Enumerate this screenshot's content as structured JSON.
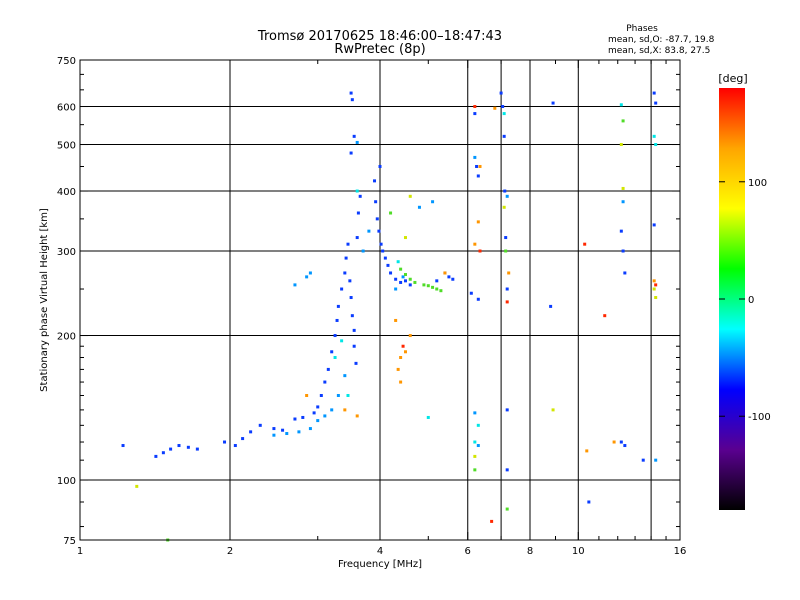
{
  "chart_data": {
    "type": "scatter",
    "title": "Tromsø 20170625 18:46:00–18:47:43",
    "subtitle": "RwPretec (8p)",
    "xlabel": "Frequency [MHz]",
    "ylabel": "Stationary phase Virtual Height [km]",
    "xscale": "log",
    "yscale": "log",
    "xlim": [
      1,
      16
    ],
    "ylim": [
      75,
      750
    ],
    "xticks": [
      1,
      2,
      4,
      6,
      8,
      10,
      16
    ],
    "xtick_labels": [
      "1",
      "2",
      "4",
      "6",
      "8",
      "10",
      "16"
    ],
    "xgrid": [
      2,
      4,
      6,
      7,
      8,
      10,
      14
    ],
    "yticks": [
      75,
      100,
      200,
      300,
      400,
      500,
      600,
      750
    ],
    "ytick_labels": [
      "75",
      "100",
      "200",
      "300",
      "400",
      "500",
      "600",
      "750"
    ],
    "ygrid": [
      100,
      200,
      300,
      400,
      500,
      600
    ],
    "grid": true,
    "phase_stats": {
      "header": "Phases",
      "line_o": "mean, sd,O: -87.7, 19.8",
      "line_x": "mean, sd,X: 83.8, 27.5"
    },
    "colorbar": {
      "label": "[deg]",
      "range": [
        -180,
        180
      ],
      "ticks": [
        100,
        0,
        -100
      ],
      "tick_labels": [
        "100",
        "0",
        "-100"
      ],
      "colors": [
        "#ff0000",
        "#ffa500",
        "#ffff00",
        "#00ff00",
        "#00ffff",
        "#0000ff",
        "#5a0090",
        "#000000"
      ]
    },
    "series": [
      {
        "phase": -100,
        "color": "#0a3cff",
        "points": [
          [
            1.22,
            118
          ],
          [
            1.42,
            112
          ],
          [
            1.47,
            114
          ],
          [
            1.52,
            116
          ],
          [
            1.58,
            118
          ],
          [
            1.65,
            117
          ],
          [
            1.72,
            116
          ],
          [
            1.95,
            120
          ],
          [
            2.05,
            118
          ],
          [
            2.12,
            122
          ],
          [
            2.2,
            126
          ],
          [
            2.3,
            130
          ],
          [
            2.45,
            128
          ],
          [
            2.55,
            127
          ],
          [
            2.7,
            134
          ],
          [
            2.8,
            135
          ],
          [
            2.95,
            138
          ],
          [
            3.0,
            142
          ],
          [
            3.05,
            150
          ],
          [
            3.1,
            160
          ],
          [
            3.15,
            170
          ],
          [
            3.2,
            185
          ],
          [
            3.25,
            200
          ],
          [
            3.28,
            215
          ],
          [
            3.3,
            230
          ],
          [
            3.35,
            250
          ],
          [
            3.4,
            270
          ],
          [
            3.42,
            290
          ],
          [
            3.45,
            310
          ],
          [
            3.48,
            260
          ],
          [
            3.5,
            240
          ],
          [
            3.52,
            220
          ],
          [
            3.55,
            205
          ],
          [
            3.55,
            190
          ],
          [
            3.58,
            175
          ],
          [
            3.6,
            320
          ],
          [
            3.62,
            360
          ],
          [
            3.65,
            390
          ],
          [
            3.5,
            640
          ],
          [
            3.52,
            620
          ],
          [
            3.55,
            520
          ],
          [
            3.5,
            480
          ],
          [
            3.9,
            420
          ],
          [
            3.92,
            380
          ],
          [
            3.95,
            350
          ],
          [
            3.98,
            330
          ],
          [
            4.0,
            450
          ],
          [
            4.02,
            310
          ],
          [
            4.05,
            300
          ],
          [
            4.1,
            290
          ],
          [
            4.15,
            280
          ],
          [
            4.2,
            270
          ],
          [
            4.3,
            262
          ],
          [
            4.4,
            258
          ],
          [
            4.5,
            260
          ],
          [
            4.6,
            255
          ],
          [
            5.2,
            260
          ],
          [
            5.4,
            270
          ],
          [
            5.5,
            265
          ],
          [
            5.6,
            262
          ],
          [
            6.1,
            245
          ],
          [
            6.3,
            238
          ],
          [
            6.2,
            580
          ],
          [
            6.25,
            450
          ],
          [
            6.3,
            430
          ],
          [
            7.0,
            640
          ],
          [
            7.05,
            600
          ],
          [
            7.1,
            520
          ],
          [
            7.12,
            400
          ],
          [
            7.15,
            320
          ],
          [
            7.2,
            250
          ],
          [
            7.2,
            140
          ],
          [
            7.2,
            105
          ],
          [
            8.9,
            610
          ],
          [
            8.8,
            230
          ],
          [
            10.5,
            90
          ],
          [
            12.2,
            330
          ],
          [
            12.3,
            300
          ],
          [
            12.4,
            270
          ],
          [
            12.2,
            120
          ],
          [
            12.4,
            118
          ],
          [
            14.2,
            640
          ],
          [
            14.3,
            610
          ],
          [
            14.2,
            340
          ],
          [
            13.5,
            110
          ]
        ]
      },
      {
        "phase": -60,
        "color": "#0096ff",
        "points": [
          [
            2.45,
            124
          ],
          [
            2.6,
            125
          ],
          [
            2.75,
            126
          ],
          [
            2.9,
            128
          ],
          [
            3.0,
            133
          ],
          [
            3.1,
            136
          ],
          [
            3.2,
            140
          ],
          [
            3.3,
            150
          ],
          [
            3.4,
            165
          ],
          [
            2.85,
            265
          ],
          [
            2.9,
            270
          ],
          [
            2.7,
            255
          ],
          [
            3.6,
            505
          ],
          [
            3.7,
            300
          ],
          [
            3.8,
            330
          ],
          [
            4.3,
            250
          ],
          [
            4.45,
            265
          ],
          [
            4.8,
            370
          ],
          [
            5.1,
            380
          ],
          [
            6.2,
            470
          ],
          [
            6.2,
            138
          ],
          [
            6.3,
            118
          ],
          [
            7.2,
            390
          ],
          [
            12.3,
            380
          ],
          [
            14.3,
            110
          ]
        ]
      },
      {
        "phase": -20,
        "color": "#00e6e6",
        "points": [
          [
            3.25,
            180
          ],
          [
            3.35,
            195
          ],
          [
            3.45,
            150
          ],
          [
            3.6,
            400
          ],
          [
            4.35,
            285
          ],
          [
            5.0,
            135
          ],
          [
            6.2,
            120
          ],
          [
            6.3,
            130
          ],
          [
            7.1,
            580
          ],
          [
            12.2,
            605
          ],
          [
            14.2,
            520
          ],
          [
            14.3,
            500
          ]
        ]
      },
      {
        "phase": 40,
        "color": "#50dc28",
        "points": [
          [
            1.5,
            75
          ],
          [
            4.4,
            275
          ],
          [
            4.5,
            268
          ],
          [
            4.6,
            262
          ],
          [
            4.7,
            258
          ],
          [
            4.9,
            255
          ],
          [
            5.0,
            254
          ],
          [
            5.1,
            252
          ],
          [
            5.2,
            250
          ],
          [
            5.3,
            248
          ],
          [
            4.2,
            360
          ],
          [
            6.2,
            105
          ],
          [
            7.2,
            87
          ],
          [
            7.15,
            300
          ],
          [
            12.3,
            560
          ]
        ]
      },
      {
        "phase": 80,
        "color": "#d2e600",
        "points": [
          [
            1.3,
            97
          ],
          [
            4.6,
            390
          ],
          [
            4.5,
            320
          ],
          [
            6.2,
            112
          ],
          [
            7.1,
            370
          ],
          [
            8.9,
            140
          ],
          [
            12.2,
            500
          ],
          [
            12.3,
            405
          ],
          [
            14.2,
            250
          ],
          [
            14.3,
            240
          ]
        ]
      },
      {
        "phase": 130,
        "color": "#ff9600",
        "points": [
          [
            2.85,
            150
          ],
          [
            3.4,
            140
          ],
          [
            3.6,
            136
          ],
          [
            4.4,
            180
          ],
          [
            4.5,
            185
          ],
          [
            4.35,
            170
          ],
          [
            4.4,
            160
          ],
          [
            4.6,
            200
          ],
          [
            4.3,
            215
          ],
          [
            5.4,
            270
          ],
          [
            6.35,
            450
          ],
          [
            6.8,
            595
          ],
          [
            6.2,
            310
          ],
          [
            6.3,
            345
          ],
          [
            7.25,
            270
          ],
          [
            10.4,
            115
          ],
          [
            11.8,
            120
          ],
          [
            14.2,
            260
          ]
        ]
      },
      {
        "phase": 170,
        "color": "#ff2800",
        "points": [
          [
            4.45,
            190
          ],
          [
            6.35,
            300
          ],
          [
            6.7,
            82
          ],
          [
            10.3,
            310
          ],
          [
            11.3,
            220
          ],
          [
            14.3,
            255
          ],
          [
            7.2,
            235
          ],
          [
            6.2,
            600
          ]
        ]
      }
    ]
  }
}
